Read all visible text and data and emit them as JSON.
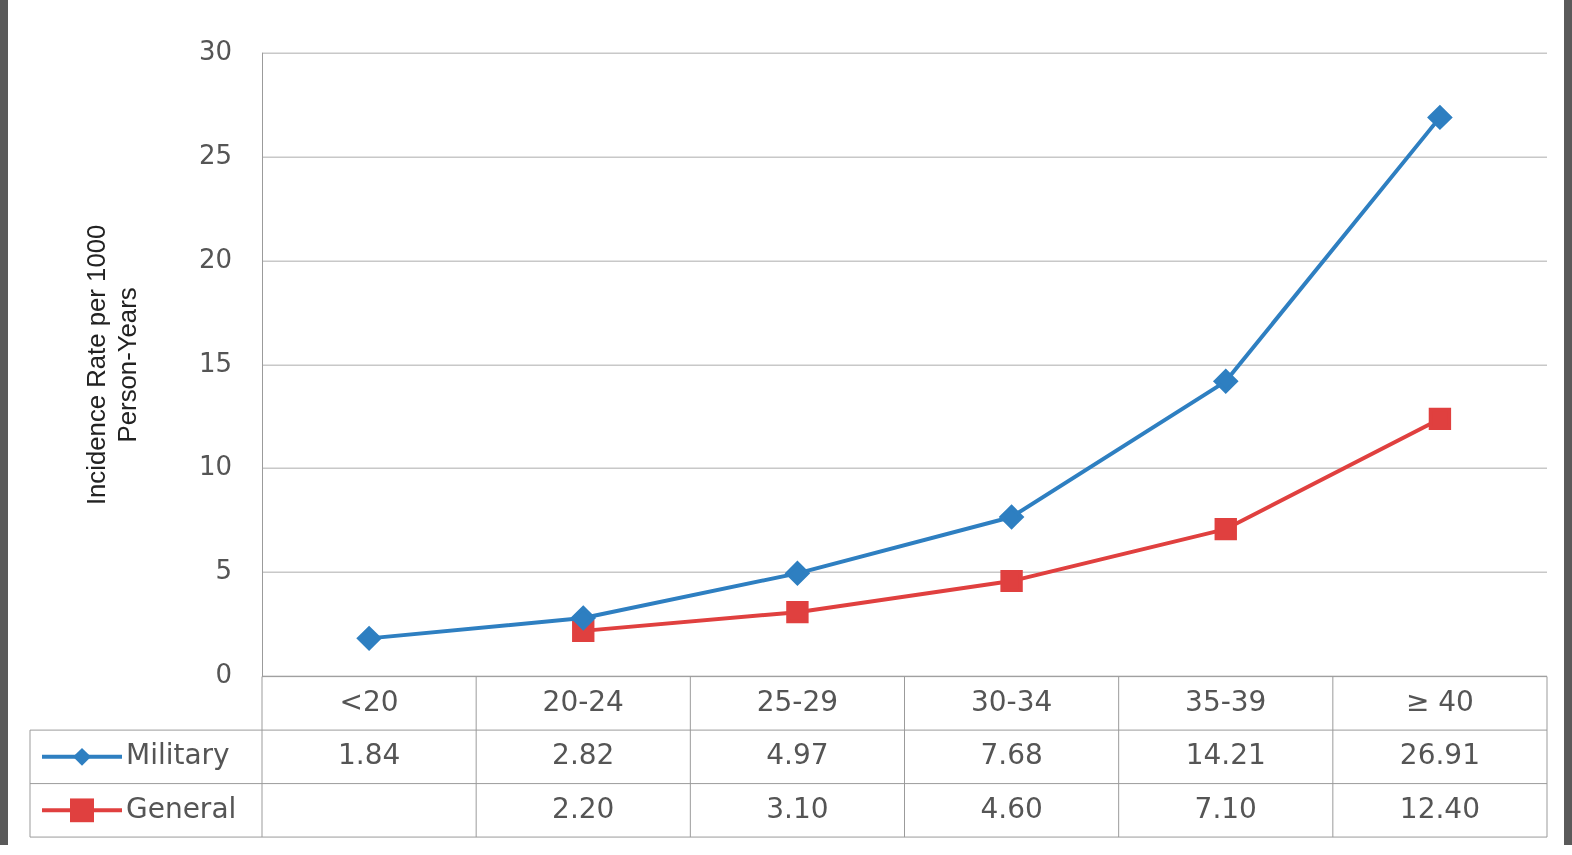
{
  "chart_data": {
    "type": "line",
    "ylabel": "Incidence Rate per 1000\nPerson-Years",
    "categories": [
      "<20",
      "20-24",
      "25-29",
      "30-34",
      "35-39",
      "≥ 40"
    ],
    "series": [
      {
        "name": "Military",
        "color": "#2e7fc1",
        "marker": "diamond",
        "values": [
          1.84,
          2.82,
          4.97,
          7.68,
          14.21,
          26.91
        ],
        "value_labels": [
          "1.84",
          "2.82",
          "4.97",
          "7.68",
          "14.21",
          "26.91"
        ]
      },
      {
        "name": "General",
        "color": "#e0403f",
        "marker": "square",
        "values": [
          null,
          2.2,
          3.1,
          4.6,
          7.1,
          12.4
        ],
        "value_labels": [
          null,
          "2.20",
          "3.10",
          "4.60",
          "7.10",
          "12.40"
        ]
      }
    ],
    "ylim": [
      0,
      30
    ],
    "yticks": [
      0,
      5,
      10,
      15,
      20,
      25,
      30
    ],
    "grid": "y",
    "legend": "bottom"
  }
}
